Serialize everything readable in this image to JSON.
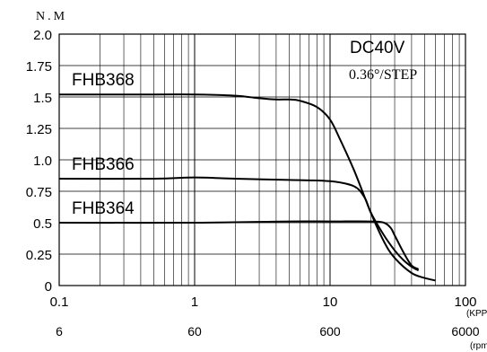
{
  "chart_data": {
    "type": "line",
    "x_scale": "log",
    "xlim": [
      0.1,
      100
    ],
    "ylim": [
      0,
      2.0
    ],
    "ylabel": "N.M",
    "x_unit": "(KPPS)",
    "x_tick_labels": [
      "0.1",
      "1",
      "10",
      "100"
    ],
    "x_ticks": [
      0.1,
      1,
      10,
      100
    ],
    "rpm_unit": "(rpm)",
    "rpm_tick_labels": [
      "6",
      "60",
      "600",
      "6000"
    ],
    "y_ticks": [
      0,
      0.25,
      0.5,
      0.75,
      1.0,
      1.25,
      1.5,
      1.75,
      2.0
    ],
    "y_tick_labels": [
      "0",
      "0.25",
      "0.5",
      "0.75",
      "1.0",
      "1.25",
      "1.5",
      "1.75",
      "2.0"
    ],
    "grid": true,
    "annotations": {
      "voltage": "DC40V",
      "step_angle": "0.36°/STEP"
    },
    "series": [
      {
        "name": "FHB368",
        "x": [
          0.1,
          0.5,
          1,
          2,
          3,
          4,
          5,
          6,
          8,
          10,
          12,
          15,
          20,
          25,
          30,
          40,
          50,
          60
        ],
        "y": [
          1.52,
          1.52,
          1.52,
          1.51,
          1.49,
          1.48,
          1.48,
          1.47,
          1.42,
          1.32,
          1.15,
          0.92,
          0.58,
          0.35,
          0.22,
          0.1,
          0.06,
          0.04
        ]
      },
      {
        "name": "FHB366",
        "x": [
          0.1,
          0.5,
          1,
          2,
          5,
          10,
          15,
          18,
          20,
          25,
          30,
          35,
          40,
          45
        ],
        "y": [
          0.85,
          0.85,
          0.86,
          0.85,
          0.84,
          0.83,
          0.79,
          0.7,
          0.58,
          0.4,
          0.28,
          0.2,
          0.15,
          0.12
        ]
      },
      {
        "name": "FHB364",
        "x": [
          0.1,
          1,
          5,
          10,
          20,
          25,
          28,
          30,
          35,
          40,
          45
        ],
        "y": [
          0.5,
          0.5,
          0.51,
          0.51,
          0.51,
          0.5,
          0.46,
          0.4,
          0.26,
          0.16,
          0.13
        ]
      }
    ]
  }
}
